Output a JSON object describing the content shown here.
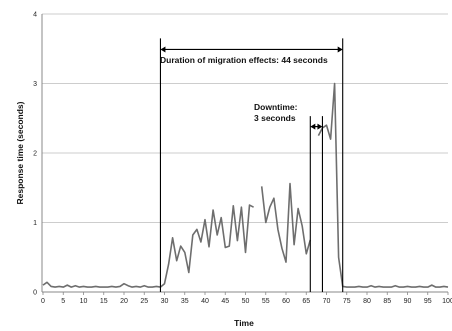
{
  "chart_data": {
    "type": "line",
    "xlabel": "Time",
    "ylabel": "Response time (seconds)",
    "xlim": [
      0,
      100
    ],
    "ylim": [
      0,
      4
    ],
    "grid": "horizontal",
    "legend": "none",
    "x_ticks": [
      0,
      5,
      10,
      15,
      20,
      25,
      30,
      35,
      40,
      45,
      50,
      55,
      60,
      65,
      70,
      75,
      80,
      85,
      90,
      95,
      100
    ],
    "x_tick_labels": [
      "0",
      "5",
      "10",
      "15",
      "20",
      "25",
      "30",
      "35",
      "40",
      "45",
      "50",
      "55",
      "60",
      "65",
      "70",
      "75",
      "80",
      "85",
      "90",
      "95",
      "100"
    ],
    "y_ticks": [
      0,
      1,
      2,
      3,
      4
    ],
    "y_tick_labels": [
      "0",
      "1",
      "2",
      "3",
      "4"
    ],
    "series": [
      {
        "color": "#6e6e6e",
        "segments": [
          [
            [
              0,
              0.1
            ],
            [
              1,
              0.14
            ],
            [
              2,
              0.08
            ],
            [
              3,
              0.07
            ],
            [
              4,
              0.08
            ],
            [
              5,
              0.07
            ],
            [
              6,
              0.1
            ],
            [
              7,
              0.07
            ],
            [
              8,
              0.09
            ],
            [
              9,
              0.07
            ],
            [
              10,
              0.08
            ],
            [
              11,
              0.07
            ],
            [
              12,
              0.07
            ],
            [
              13,
              0.08
            ],
            [
              14,
              0.07
            ],
            [
              15,
              0.07
            ],
            [
              16,
              0.07
            ],
            [
              17,
              0.08
            ],
            [
              18,
              0.07
            ],
            [
              19,
              0.08
            ],
            [
              20,
              0.12
            ],
            [
              21,
              0.09
            ],
            [
              22,
              0.07
            ],
            [
              23,
              0.08
            ],
            [
              24,
              0.07
            ],
            [
              25,
              0.09
            ],
            [
              26,
              0.07
            ],
            [
              27,
              0.07
            ],
            [
              28,
              0.08
            ],
            [
              29,
              0.07
            ],
            [
              30,
              0.12
            ],
            [
              31,
              0.4
            ],
            [
              32,
              0.78
            ],
            [
              33,
              0.45
            ],
            [
              34,
              0.66
            ],
            [
              35,
              0.57
            ],
            [
              36,
              0.28
            ],
            [
              37,
              0.82
            ],
            [
              38,
              0.9
            ],
            [
              39,
              0.72
            ],
            [
              40,
              1.04
            ],
            [
              41,
              0.65
            ],
            [
              42,
              1.18
            ],
            [
              43,
              0.82
            ],
            [
              44,
              1.07
            ],
            [
              45,
              0.64
            ],
            [
              46,
              0.66
            ],
            [
              47,
              1.24
            ],
            [
              48,
              0.74
            ],
            [
              49,
              1.22
            ],
            [
              50,
              0.57
            ],
            [
              51,
              1.25
            ],
            [
              52,
              1.22
            ]
          ],
          [
            [
              54,
              1.52
            ],
            [
              55,
              1.0
            ],
            [
              56,
              1.22
            ],
            [
              57,
              1.35
            ],
            [
              58,
              0.9
            ],
            [
              59,
              0.63
            ],
            [
              60,
              0.43
            ],
            [
              61,
              1.56
            ],
            [
              62,
              0.68
            ],
            [
              63,
              1.2
            ],
            [
              64,
              0.95
            ],
            [
              65,
              0.55
            ],
            [
              66,
              0.75
            ]
          ],
          [
            [
              68,
              2.25
            ],
            [
              69,
              2.36
            ],
            [
              70,
              2.4
            ],
            [
              71,
              2.2
            ],
            [
              72,
              3.0
            ],
            [
              73,
              0.5
            ],
            [
              74,
              0.08
            ],
            [
              75,
              0.07
            ],
            [
              76,
              0.07
            ],
            [
              77,
              0.07
            ],
            [
              78,
              0.08
            ],
            [
              79,
              0.07
            ],
            [
              80,
              0.07
            ],
            [
              81,
              0.09
            ],
            [
              82,
              0.07
            ],
            [
              83,
              0.08
            ],
            [
              84,
              0.07
            ],
            [
              85,
              0.07
            ],
            [
              86,
              0.07
            ],
            [
              87,
              0.09
            ],
            [
              88,
              0.07
            ],
            [
              89,
              0.07
            ],
            [
              90,
              0.08
            ],
            [
              91,
              0.07
            ],
            [
              92,
              0.07
            ],
            [
              93,
              0.08
            ],
            [
              94,
              0.07
            ],
            [
              95,
              0.07
            ],
            [
              96,
              0.1
            ],
            [
              97,
              0.07
            ],
            [
              98,
              0.07
            ],
            [
              99,
              0.08
            ],
            [
              100,
              0.07
            ],
            [
              101,
              0.09
            ],
            [
              102,
              0.07
            ],
            [
              103,
              0.12
            ],
            [
              104,
              0.07
            ]
          ]
        ]
      }
    ],
    "markers": [
      {
        "x": 29,
        "y_top": 3.65
      },
      {
        "x": 66,
        "y_top": 2.53
      },
      {
        "x": 69,
        "y_top": 2.53
      },
      {
        "x": 74,
        "y_top": 3.65
      }
    ],
    "annotations": [
      {
        "text": "Duration of migration effects: 44 seconds",
        "arrow_from": 29,
        "arrow_to": 74,
        "arrow_y": 3.49
      },
      {
        "text_lines": [
          "Downtime:",
          "3 seconds"
        ],
        "arrow_from": 66,
        "arrow_to": 69,
        "arrow_y": 2.38
      }
    ]
  }
}
